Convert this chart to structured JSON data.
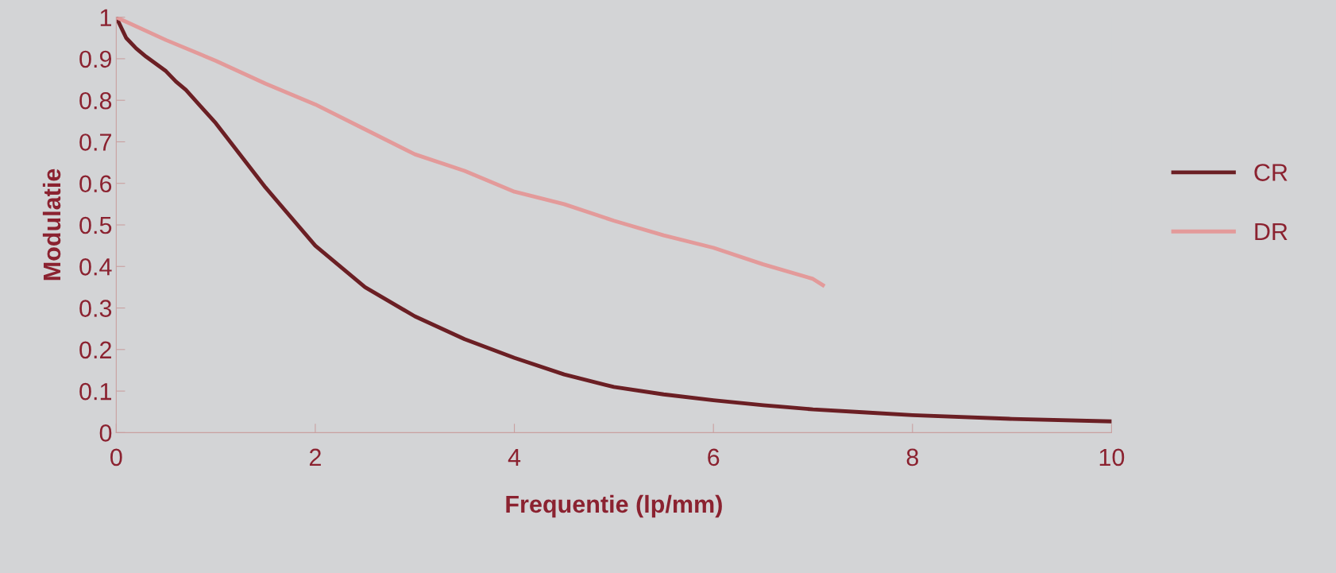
{
  "chart_data": {
    "type": "line",
    "xlabel": "Frequentie (lp/mm)",
    "ylabel": "Modulatie",
    "xlim": [
      0,
      10
    ],
    "xticks": [
      0,
      2,
      4,
      6,
      8,
      10
    ],
    "ylim": [
      0,
      1
    ],
    "yticks": [
      0,
      {
        "value": 0.1,
        "label": "0.1"
      },
      {
        "value": 0.2,
        "label": "0.2"
      },
      {
        "value": 0.3,
        "label": "0.3"
      },
      {
        "value": 0.4,
        "label": "0.4"
      },
      {
        "value": 0.5,
        "label": "0.5"
      },
      {
        "value": 0.6,
        "label": "0.6"
      },
      {
        "value": 0.7,
        "label": "0.7"
      },
      {
        "value": 0.8,
        "label": "0.8"
      },
      {
        "value": 0.9,
        "label": "0.9"
      },
      1
    ],
    "grid": false,
    "legend": "right",
    "marker": "none",
    "line_style": "solid",
    "series": [
      {
        "name": "CR",
        "color": "#6b1f24",
        "x": [
          0,
          0.1,
          0.2,
          0.3,
          0.5,
          0.6,
          0.7,
          1,
          1.5,
          2,
          2.5,
          3,
          3.5,
          4,
          4.5,
          5,
          5.5,
          6,
          6.5,
          7,
          7.5,
          8,
          9,
          10
        ],
        "values": [
          1,
          0.95,
          0.925,
          0.905,
          0.87,
          0.845,
          0.825,
          0.745,
          0.59,
          0.45,
          0.35,
          0.28,
          0.225,
          0.18,
          0.14,
          0.11,
          0.092,
          0.078,
          0.066,
          0.056,
          0.049,
          0.042,
          0.033,
          0.027
        ]
      },
      {
        "name": "DR",
        "color": "#e39a9a",
        "x": [
          0,
          0.5,
          1,
          1.5,
          2,
          2.5,
          3,
          3.5,
          4,
          4.5,
          5,
          5.5,
          6,
          6.5,
          7,
          7.1
        ],
        "values": [
          1,
          0.945,
          0.895,
          0.84,
          0.79,
          0.73,
          0.67,
          0.63,
          0.58,
          0.55,
          0.51,
          0.475,
          0.445,
          0.405,
          0.37,
          0.355
        ]
      }
    ]
  }
}
